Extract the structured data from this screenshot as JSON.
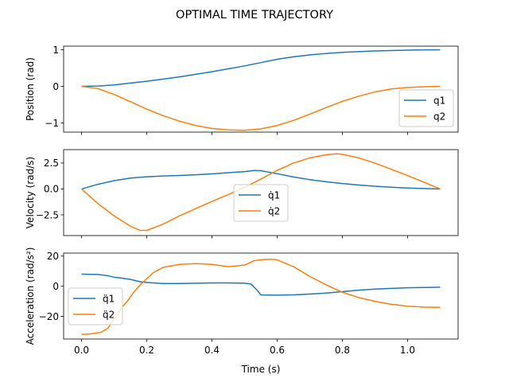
{
  "figure": {
    "title": "OPTIMAL TIME TRAJECTORY",
    "xlabel": "Time (s)"
  },
  "chart_data": [
    {
      "type": "line",
      "ylabel": "Position (rad)",
      "xlim": [
        -0.055,
        1.155
      ],
      "ylim": [
        -1.25,
        1.1
      ],
      "yticks": [
        1,
        0,
        -1
      ],
      "ytick_labels": [
        "1",
        "0",
        "−1"
      ],
      "xticks": [
        0.0,
        0.2,
        0.4,
        0.6,
        0.8,
        1.0
      ],
      "show_xtick_labels": false,
      "legend": "lower-right",
      "grid": false,
      "series": [
        {
          "name": "q1",
          "legend_label": "q1",
          "color": "#1f77b4",
          "x": [
            0,
            0.05,
            0.1,
            0.15,
            0.2,
            0.25,
            0.3,
            0.35,
            0.4,
            0.45,
            0.5,
            0.55,
            0.6,
            0.65,
            0.7,
            0.75,
            0.8,
            0.85,
            0.9,
            0.95,
            1.0,
            1.05,
            1.1
          ],
          "y": [
            0.0,
            0.01,
            0.04,
            0.09,
            0.14,
            0.2,
            0.26,
            0.33,
            0.4,
            0.48,
            0.56,
            0.65,
            0.74,
            0.81,
            0.86,
            0.9,
            0.93,
            0.95,
            0.97,
            0.98,
            0.99,
            1.0,
            1.0
          ]
        },
        {
          "name": "q2",
          "legend_label": "q2",
          "color": "#ff7f0e",
          "x": [
            0,
            0.05,
            0.1,
            0.15,
            0.2,
            0.25,
            0.3,
            0.35,
            0.4,
            0.45,
            0.5,
            0.55,
            0.6,
            0.65,
            0.7,
            0.75,
            0.8,
            0.85,
            0.9,
            0.95,
            1.0,
            1.05,
            1.1
          ],
          "y": [
            0.0,
            -0.06,
            -0.22,
            -0.42,
            -0.62,
            -0.8,
            -0.95,
            -1.07,
            -1.15,
            -1.19,
            -1.2,
            -1.16,
            -1.07,
            -0.93,
            -0.76,
            -0.58,
            -0.41,
            -0.27,
            -0.15,
            -0.07,
            -0.03,
            -0.01,
            0.0
          ]
        }
      ]
    },
    {
      "type": "line",
      "ylabel": "Velocity (rad/s)",
      "xlim": [
        -0.055,
        1.155
      ],
      "ylim": [
        -4.5,
        3.8
      ],
      "yticks": [
        2.5,
        0.0,
        -2.5
      ],
      "ytick_labels": [
        "2.5",
        "0.0",
        "−2.5"
      ],
      "xticks": [
        0.0,
        0.2,
        0.4,
        0.6,
        0.8,
        1.0
      ],
      "show_xtick_labels": false,
      "legend": "lower-center",
      "grid": false,
      "series": [
        {
          "name": "q1dot",
          "legend_label": "q̇1",
          "color": "#1f77b4",
          "x": [
            0,
            0.05,
            0.1,
            0.15,
            0.2,
            0.25,
            0.3,
            0.35,
            0.4,
            0.45,
            0.5,
            0.53,
            0.55,
            0.6,
            0.65,
            0.7,
            0.75,
            0.8,
            0.85,
            0.9,
            0.95,
            1.0,
            1.05,
            1.1
          ],
          "y": [
            0.0,
            0.45,
            0.8,
            1.05,
            1.18,
            1.25,
            1.3,
            1.37,
            1.46,
            1.57,
            1.68,
            1.78,
            1.76,
            1.47,
            1.16,
            0.9,
            0.7,
            0.52,
            0.38,
            0.26,
            0.17,
            0.09,
            0.04,
            0.0
          ]
        },
        {
          "name": "q2dot",
          "legend_label": "q̇2",
          "color": "#ff7f0e",
          "x": [
            0,
            0.05,
            0.1,
            0.15,
            0.18,
            0.2,
            0.25,
            0.3,
            0.35,
            0.4,
            0.45,
            0.5,
            0.55,
            0.6,
            0.65,
            0.7,
            0.75,
            0.78,
            0.8,
            0.85,
            0.9,
            0.95,
            1.0,
            1.05,
            1.1
          ],
          "y": [
            0.0,
            -1.4,
            -2.6,
            -3.6,
            -4.0,
            -4.0,
            -3.4,
            -2.6,
            -1.9,
            -1.2,
            -0.55,
            0.15,
            0.95,
            1.8,
            2.5,
            3.0,
            3.3,
            3.4,
            3.35,
            3.0,
            2.5,
            1.9,
            1.3,
            0.65,
            0.0
          ]
        }
      ]
    },
    {
      "type": "line",
      "ylabel": "Acceleration (rad/s²)",
      "xlim": [
        -0.055,
        1.155
      ],
      "ylim": [
        -35,
        22
      ],
      "yticks": [
        20,
        0,
        -20
      ],
      "ytick_labels": [
        "20",
        "0",
        "−20"
      ],
      "xticks": [
        0.0,
        0.2,
        0.4,
        0.6,
        0.8,
        1.0
      ],
      "xtick_labels": [
        "0.0",
        "0.2",
        "0.4",
        "0.6",
        "0.8",
        "1.0"
      ],
      "show_xtick_labels": true,
      "legend": "lower-left",
      "grid": false,
      "series": [
        {
          "name": "q1ddot",
          "legend_label": "q̈1",
          "color": "#1f77b4",
          "x": [
            0,
            0.05,
            0.08,
            0.1,
            0.12,
            0.15,
            0.18,
            0.2,
            0.25,
            0.3,
            0.35,
            0.4,
            0.45,
            0.5,
            0.52,
            0.54,
            0.55,
            0.6,
            0.65,
            0.7,
            0.75,
            0.8,
            0.85,
            0.9,
            0.95,
            1.0,
            1.05,
            1.1
          ],
          "y": [
            8.0,
            7.8,
            7.0,
            6.0,
            5.5,
            4.5,
            3.0,
            2.5,
            1.8,
            1.8,
            2.0,
            2.2,
            2.2,
            2.0,
            1.5,
            -3.0,
            -5.8,
            -5.9,
            -5.7,
            -5.2,
            -4.5,
            -3.6,
            -2.6,
            -1.9,
            -1.4,
            -1.0,
            -0.8,
            -0.6
          ]
        },
        {
          "name": "q2ddot",
          "legend_label": "q̈2",
          "color": "#ff7f0e",
          "x": [
            0,
            0.03,
            0.06,
            0.08,
            0.1,
            0.12,
            0.14,
            0.16,
            0.18,
            0.2,
            0.22,
            0.25,
            0.3,
            0.35,
            0.4,
            0.45,
            0.5,
            0.53,
            0.55,
            0.58,
            0.6,
            0.65,
            0.7,
            0.75,
            0.8,
            0.85,
            0.9,
            0.95,
            1.0,
            1.05,
            1.1
          ],
          "y": [
            -32.0,
            -31.5,
            -30.5,
            -28.0,
            -22.0,
            -15.0,
            -10.0,
            -4.0,
            1.0,
            5.0,
            9.0,
            12.5,
            14.5,
            15.0,
            14.5,
            13.0,
            14.0,
            17.0,
            17.5,
            18.0,
            17.5,
            13.0,
            6.5,
            1.0,
            -4.0,
            -7.5,
            -10.0,
            -12.0,
            -13.2,
            -13.8,
            -14.0
          ]
        }
      ]
    }
  ]
}
